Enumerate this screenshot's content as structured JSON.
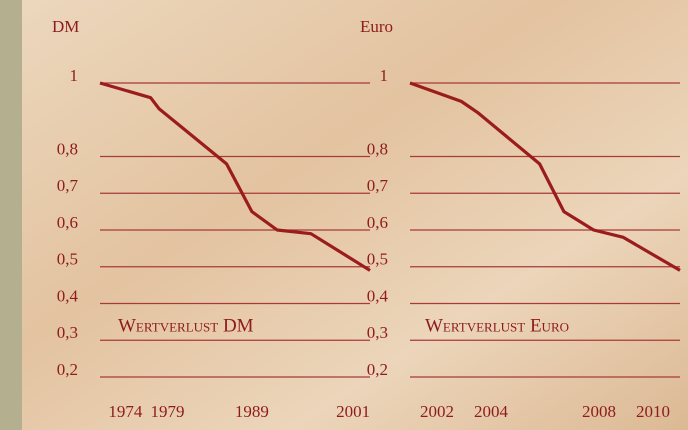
{
  "chart_data": [
    {
      "type": "line",
      "y_label": "DM",
      "title": "Wertverlust DM",
      "xlim": [
        1971,
        2003
      ],
      "xticks": [
        1974,
        1979,
        1989,
        2001
      ],
      "ylim": [
        0.2,
        1
      ],
      "yticks": [
        1,
        {
          "value": 0.8,
          "label": "0,8"
        },
        {
          "value": 0.7,
          "label": "0,7"
        },
        {
          "value": 0.6,
          "label": "0,6"
        },
        {
          "value": 0.5,
          "label": "0,5"
        },
        {
          "value": 0.4,
          "label": "0,4"
        },
        {
          "value": 0.3,
          "label": "0,3"
        },
        {
          "value": 0.2,
          "label": "0,2"
        }
      ],
      "grid": true,
      "series": [
        {
          "color": "#9b1c1c",
          "x": [
            1971,
            1977,
            1978,
            1986,
            1989,
            1992,
            1996,
            2003
          ],
          "values": [
            1,
            0.96,
            0.93,
            0.78,
            0.65,
            0.6,
            0.59,
            0.49
          ]
        }
      ]
    },
    {
      "type": "line",
      "y_label": "Euro",
      "title": "Wertverlust Euro",
      "xlim": [
        2001,
        2011
      ],
      "xticks": [
        2002,
        2004,
        2008,
        2010
      ],
      "ylim": [
        0.2,
        1
      ],
      "yticks": [
        1,
        {
          "value": 0.8,
          "label": "0,8"
        },
        {
          "value": 0.7,
          "label": "0,7"
        },
        {
          "value": 0.6,
          "label": "0,6"
        },
        {
          "value": 0.5,
          "label": "0,5"
        },
        {
          "value": 0.4,
          "label": "0,4"
        },
        {
          "value": 0.3,
          "label": "0,3"
        },
        {
          "value": 0.2,
          "label": "0,2"
        }
      ],
      "grid": true,
      "series": [
        {
          "color": "#9b1c1c",
          "x": [
            2001,
            2002.9,
            2003.5,
            2005.8,
            2006.7,
            2007.8,
            2008.9,
            2011
          ],
          "values": [
            1,
            0.95,
            0.92,
            0.78,
            0.65,
            0.6,
            0.58,
            0.49
          ]
        }
      ]
    }
  ]
}
